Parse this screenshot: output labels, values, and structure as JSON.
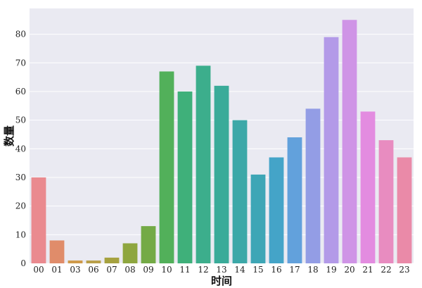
{
  "chart_data": {
    "type": "bar",
    "xlabel": "时间",
    "ylabel": "数量",
    "categories": [
      "00",
      "01",
      "03",
      "06",
      "07",
      "08",
      "09",
      "10",
      "11",
      "12",
      "13",
      "14",
      "15",
      "16",
      "17",
      "18",
      "19",
      "20",
      "21",
      "22",
      "23"
    ],
    "values": [
      30,
      8,
      1,
      1,
      2,
      7,
      13,
      67,
      60,
      69,
      62,
      50,
      31,
      37,
      44,
      54,
      79,
      85,
      53,
      43,
      37
    ],
    "ylim": [
      0,
      89
    ],
    "yticks": [
      0,
      10,
      20,
      30,
      40,
      50,
      60,
      70,
      80
    ],
    "grid": true,
    "colors": [
      "#ea8a8f",
      "#e08c6a",
      "#cf9a4a",
      "#b9a04a",
      "#a6a23f",
      "#8ea63f",
      "#74aa46",
      "#52b05a",
      "#3fb07a",
      "#3cae8c",
      "#3aab99",
      "#3ca8a8",
      "#3ea6b6",
      "#44a4c8",
      "#62a1dc",
      "#939de5",
      "#b39ae8",
      "#cf94e6",
      "#e38ce0",
      "#e88cc0",
      "#ea8aa8"
    ],
    "plot_background": "#eaeaf2",
    "grid_color": "#ffffff"
  }
}
